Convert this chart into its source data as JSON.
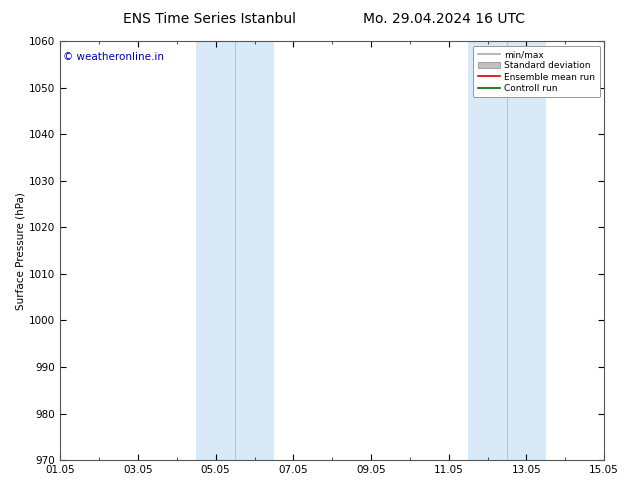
{
  "title_left": "ENS Time Series Istanbul",
  "title_right": "Mo. 29.04.2024 16 UTC",
  "ylabel": "Surface Pressure (hPa)",
  "ylim": [
    970,
    1060
  ],
  "yticks": [
    970,
    980,
    990,
    1000,
    1010,
    1020,
    1030,
    1040,
    1050,
    1060
  ],
  "xlim": [
    0,
    14
  ],
  "xtick_labels": [
    "01.05",
    "03.05",
    "05.05",
    "07.05",
    "09.05",
    "11.05",
    "13.05",
    "15.05"
  ],
  "xtick_positions": [
    0,
    2,
    4,
    6,
    8,
    10,
    12,
    14
  ],
  "minor_xtick_positions": [
    1,
    3,
    5,
    7,
    9,
    11,
    13
  ],
  "shaded_bands": [
    {
      "xmin": 3.5,
      "xmax": 5.5,
      "divider": 4.5
    },
    {
      "xmin": 10.5,
      "xmax": 12.5,
      "divider": 11.5
    }
  ],
  "shade_color": "#d8eaf7",
  "divider_color": "#aac8e0",
  "shade_alpha": 1.0,
  "bg_color": "#ffffff",
  "plot_bg": "#ffffff",
  "watermark_text": "© weatheronline.in",
  "watermark_color": "#0000bb",
  "watermark_fontsize": 7.5,
  "legend_items": [
    {
      "label": "min/max",
      "color": "#aaaaaa",
      "lw": 1.2,
      "patch": false
    },
    {
      "label": "Standard deviation",
      "color": "#c0c0c0",
      "lw": 6,
      "patch": true
    },
    {
      "label": "Ensemble mean run",
      "color": "#dd0000",
      "lw": 1.2,
      "patch": false
    },
    {
      "label": "Controll run",
      "color": "#006600",
      "lw": 1.2,
      "patch": false
    }
  ],
  "title_fontsize": 10,
  "axis_label_fontsize": 7.5,
  "tick_fontsize": 7.5
}
